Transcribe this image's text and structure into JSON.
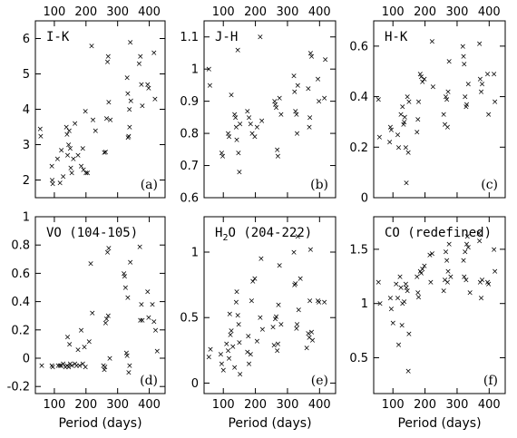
{
  "chart_data": [
    {
      "type": "scatter",
      "panel": "I-K",
      "letter": "(a)",
      "xlabel": "",
      "xticks": [
        100,
        200,
        300,
        400
      ],
      "xlim": [
        40,
        450
      ],
      "ylim": [
        1.5,
        6.5
      ],
      "yticks": [
        2,
        3,
        4,
        5,
        6
      ],
      "ytick_labels": [
        "2",
        "3",
        "4",
        "5",
        "6"
      ],
      "top_tick_labels": [
        "100",
        "200",
        "300",
        "400"
      ],
      "bottom_tick_labels": [],
      "points": [
        [
          55,
          3.45
        ],
        [
          57,
          3.25
        ],
        [
          92,
          2.4
        ],
        [
          93,
          2.0
        ],
        [
          95,
          1.9
        ],
        [
          110,
          2.6
        ],
        [
          118,
          1.92
        ],
        [
          122,
          2.85
        ],
        [
          128,
          2.1
        ],
        [
          138,
          3.5
        ],
        [
          140,
          3.3
        ],
        [
          142,
          2.7
        ],
        [
          145,
          3.0
        ],
        [
          147,
          3.4
        ],
        [
          150,
          2.9
        ],
        [
          152,
          2.35
        ],
        [
          155,
          2.2
        ],
        [
          160,
          2.6
        ],
        [
          165,
          3.6
        ],
        [
          175,
          2.7
        ],
        [
          185,
          2.4
        ],
        [
          190,
          2.9
        ],
        [
          192,
          2.3
        ],
        [
          198,
          3.95
        ],
        [
          200,
          2.2
        ],
        [
          205,
          2.2
        ],
        [
          218,
          5.8
        ],
        [
          222,
          3.7
        ],
        [
          230,
          3.4
        ],
        [
          258,
          2.78
        ],
        [
          262,
          2.8
        ],
        [
          265,
          3.75
        ],
        [
          268,
          5.35
        ],
        [
          270,
          5.5
        ],
        [
          272,
          4.2
        ],
        [
          277,
          3.7
        ],
        [
          330,
          4.9
        ],
        [
          332,
          4.45
        ],
        [
          333,
          3.2
        ],
        [
          335,
          3.25
        ],
        [
          337,
          4.0
        ],
        [
          338,
          3.5
        ],
        [
          340,
          5.9
        ],
        [
          342,
          4.25
        ],
        [
          368,
          5.3
        ],
        [
          372,
          5.5
        ],
        [
          375,
          4.7
        ],
        [
          378,
          4.1
        ],
        [
          395,
          4.7
        ],
        [
          398,
          4.6
        ],
        [
          415,
          5.6
        ],
        [
          418,
          4.3
        ]
      ]
    },
    {
      "type": "scatter",
      "panel": "J-H",
      "letter": "(b)",
      "xlabel": "",
      "xticks": [
        100,
        200,
        300,
        400
      ],
      "xlim": [
        40,
        450
      ],
      "ylim": [
        0.6,
        1.15
      ],
      "yticks": [
        0.6,
        0.7,
        0.8,
        0.9,
        1.0,
        1.1
      ],
      "ytick_labels": [
        "0.6",
        "0.7",
        "0.8",
        "0.9",
        "1",
        "1.1"
      ],
      "top_tick_labels": [
        "100",
        "200",
        "300",
        "400"
      ],
      "bottom_tick_labels": [],
      "points": [
        [
          55,
          1.0
        ],
        [
          58,
          0.95
        ],
        [
          95,
          0.74
        ],
        [
          98,
          0.73
        ],
        [
          115,
          0.8
        ],
        [
          118,
          0.79
        ],
        [
          125,
          0.92
        ],
        [
          135,
          0.86
        ],
        [
          138,
          0.85
        ],
        [
          140,
          0.82
        ],
        [
          142,
          0.78
        ],
        [
          145,
          1.06
        ],
        [
          147,
          0.74
        ],
        [
          150,
          0.68
        ],
        [
          152,
          0.83
        ],
        [
          175,
          0.87
        ],
        [
          180,
          0.85
        ],
        [
          185,
          0.83
        ],
        [
          190,
          0.8
        ],
        [
          198,
          0.79
        ],
        [
          205,
          0.82
        ],
        [
          215,
          1.1
        ],
        [
          220,
          0.84
        ],
        [
          260,
          0.9
        ],
        [
          262,
          0.89
        ],
        [
          265,
          0.88
        ],
        [
          268,
          0.75
        ],
        [
          270,
          0.73
        ],
        [
          275,
          0.91
        ],
        [
          280,
          0.86
        ],
        [
          320,
          0.98
        ],
        [
          322,
          0.93
        ],
        [
          325,
          0.87
        ],
        [
          328,
          0.86
        ],
        [
          330,
          0.8
        ],
        [
          332,
          0.95
        ],
        [
          365,
          0.94
        ],
        [
          368,
          0.82
        ],
        [
          370,
          0.85
        ],
        [
          372,
          1.05
        ],
        [
          375,
          1.04
        ],
        [
          395,
          0.97
        ],
        [
          398,
          0.9
        ],
        [
          415,
          0.91
        ],
        [
          418,
          1.03
        ]
      ]
    },
    {
      "type": "scatter",
      "panel": "H-K",
      "letter": "(c)",
      "xlabel": "",
      "xticks": [
        100,
        200,
        300,
        400
      ],
      "xlim": [
        40,
        450
      ],
      "ylim": [
        0.0,
        0.7
      ],
      "yticks": [
        0.0,
        0.2,
        0.4,
        0.6
      ],
      "ytick_labels": [
        "0",
        "0.2",
        "0.4",
        "0.6"
      ],
      "top_tick_labels": [
        "100",
        "200",
        "300",
        "400"
      ],
      "bottom_tick_labels": [],
      "points": [
        [
          55,
          0.39
        ],
        [
          58,
          0.24
        ],
        [
          90,
          0.22
        ],
        [
          92,
          0.28
        ],
        [
          95,
          0.27
        ],
        [
          115,
          0.25
        ],
        [
          118,
          0.2
        ],
        [
          125,
          0.33
        ],
        [
          130,
          0.36
        ],
        [
          133,
          0.29
        ],
        [
          135,
          0.3
        ],
        [
          137,
          0.32
        ],
        [
          140,
          0.2
        ],
        [
          142,
          0.06
        ],
        [
          145,
          0.4
        ],
        [
          148,
          0.18
        ],
        [
          150,
          0.38
        ],
        [
          175,
          0.26
        ],
        [
          178,
          0.31
        ],
        [
          180,
          0.38
        ],
        [
          185,
          0.49
        ],
        [
          188,
          0.48
        ],
        [
          192,
          0.46
        ],
        [
          198,
          0.47
        ],
        [
          222,
          0.62
        ],
        [
          225,
          0.44
        ],
        [
          258,
          0.33
        ],
        [
          262,
          0.29
        ],
        [
          265,
          0.4
        ],
        [
          268,
          0.39
        ],
        [
          270,
          0.28
        ],
        [
          272,
          0.42
        ],
        [
          275,
          0.54
        ],
        [
          318,
          0.6
        ],
        [
          320,
          0.56
        ],
        [
          322,
          0.53
        ],
        [
          325,
          0.4
        ],
        [
          328,
          0.36
        ],
        [
          330,
          0.37
        ],
        [
          335,
          0.45
        ],
        [
          370,
          0.61
        ],
        [
          372,
          0.47
        ],
        [
          375,
          0.42
        ],
        [
          378,
          0.45
        ],
        [
          395,
          0.49
        ],
        [
          398,
          0.33
        ],
        [
          415,
          0.49
        ],
        [
          418,
          0.38
        ]
      ]
    },
    {
      "type": "scatter",
      "panel": "VO (104-105)",
      "letter": "(d)",
      "xlabel": "Period (days)",
      "xticks": [
        100,
        200,
        300,
        400
      ],
      "xlim": [
        40,
        450
      ],
      "ylim": [
        -0.25,
        1.0
      ],
      "yticks": [
        -0.2,
        0.0,
        0.2,
        0.4,
        0.6,
        0.8,
        1.0
      ],
      "ytick_labels": [
        "-0.2",
        "0",
        "0.2",
        "0.4",
        "0.6",
        "0.8",
        "1"
      ],
      "top_tick_labels": [],
      "bottom_tick_labels": [
        "100",
        "200",
        "300",
        "400"
      ],
      "points": [
        [
          60,
          -0.05
        ],
        [
          92,
          -0.05
        ],
        [
          95,
          -0.06
        ],
        [
          112,
          -0.05
        ],
        [
          118,
          -0.05
        ],
        [
          122,
          -0.05
        ],
        [
          128,
          -0.04
        ],
        [
          135,
          -0.06
        ],
        [
          140,
          -0.05
        ],
        [
          142,
          0.15
        ],
        [
          145,
          -0.06
        ],
        [
          148,
          0.1
        ],
        [
          150,
          -0.04
        ],
        [
          155,
          -0.05
        ],
        [
          165,
          -0.04
        ],
        [
          170,
          -0.05
        ],
        [
          175,
          0.06
        ],
        [
          180,
          -0.05
        ],
        [
          185,
          0.2
        ],
        [
          190,
          -0.04
        ],
        [
          195,
          0.08
        ],
        [
          198,
          -0.06
        ],
        [
          210,
          0.12
        ],
        [
          215,
          0.67
        ],
        [
          220,
          0.32
        ],
        [
          255,
          -0.05
        ],
        [
          258,
          -0.08
        ],
        [
          260,
          -0.06
        ],
        [
          262,
          0.25
        ],
        [
          265,
          0.28
        ],
        [
          268,
          0.75
        ],
        [
          270,
          0.3
        ],
        [
          272,
          0.78
        ],
        [
          275,
          0.0
        ],
        [
          320,
          0.6
        ],
        [
          322,
          0.58
        ],
        [
          325,
          0.5
        ],
        [
          328,
          0.04
        ],
        [
          330,
          0.02
        ],
        [
          332,
          0.43
        ],
        [
          335,
          -0.1
        ],
        [
          338,
          -0.05
        ],
        [
          340,
          0.68
        ],
        [
          370,
          0.79
        ],
        [
          372,
          0.27
        ],
        [
          375,
          0.38
        ],
        [
          378,
          0.27
        ],
        [
          395,
          0.47
        ],
        [
          398,
          0.29
        ],
        [
          410,
          0.38
        ],
        [
          415,
          0.26
        ],
        [
          420,
          0.2
        ],
        [
          425,
          0.05
        ]
      ]
    },
    {
      "type": "scatter",
      "panel_parts": [
        "H",
        "2",
        "O (204-222)"
      ],
      "letter": "(e)",
      "xlabel": "Period (days)",
      "xticks": [
        100,
        200,
        300,
        400
      ],
      "xlim": [
        40,
        450
      ],
      "ylim": [
        -0.08,
        1.27
      ],
      "yticks": [
        0.0,
        0.5,
        1.0
      ],
      "ytick_labels": [
        "0",
        "0.5",
        "1"
      ],
      "top_tick_labels": [],
      "bottom_tick_labels": [
        "100",
        "200",
        "300",
        "400"
      ],
      "points": [
        [
          55,
          0.2
        ],
        [
          60,
          0.26
        ],
        [
          92,
          0.22
        ],
        [
          95,
          0.15
        ],
        [
          100,
          0.1
        ],
        [
          110,
          0.3
        ],
        [
          115,
          0.25
        ],
        [
          118,
          0.19
        ],
        [
          120,
          0.53
        ],
        [
          122,
          0.37
        ],
        [
          125,
          0.4
        ],
        [
          130,
          0.28
        ],
        [
          135,
          0.12
        ],
        [
          140,
          0.62
        ],
        [
          142,
          0.7
        ],
        [
          145,
          0.52
        ],
        [
          148,
          0.45
        ],
        [
          150,
          0.31
        ],
        [
          152,
          0.07
        ],
        [
          175,
          0.24
        ],
        [
          178,
          0.36
        ],
        [
          180,
          0.15
        ],
        [
          185,
          0.22
        ],
        [
          188,
          0.63
        ],
        [
          192,
          0.78
        ],
        [
          198,
          0.8
        ],
        [
          205,
          0.32
        ],
        [
          215,
          0.5
        ],
        [
          218,
          0.95
        ],
        [
          222,
          0.41
        ],
        [
          255,
          0.43
        ],
        [
          258,
          0.29
        ],
        [
          262,
          0.49
        ],
        [
          265,
          0.51
        ],
        [
          268,
          0.25
        ],
        [
          270,
          0.3
        ],
        [
          272,
          0.6
        ],
        [
          275,
          0.9
        ],
        [
          280,
          0.45
        ],
        [
          320,
          1.0
        ],
        [
          322,
          0.75
        ],
        [
          325,
          0.76
        ],
        [
          328,
          0.42
        ],
        [
          330,
          0.45
        ],
        [
          332,
          1.12
        ],
        [
          335,
          0.56
        ],
        [
          340,
          0.8
        ],
        [
          360,
          0.27
        ],
        [
          365,
          0.38
        ],
        [
          368,
          0.35
        ],
        [
          370,
          0.63
        ],
        [
          372,
          1.02
        ],
        [
          375,
          0.39
        ],
        [
          378,
          0.33
        ],
        [
          395,
          0.63
        ],
        [
          398,
          0.62
        ],
        [
          415,
          0.62
        ]
      ]
    },
    {
      "type": "scatter",
      "panel": "CO (redefined)",
      "letter": "(f)",
      "xlabel": "Period (days)",
      "xticks": [
        100,
        200,
        300,
        400
      ],
      "xlim": [
        40,
        450
      ],
      "ylim": [
        0.17,
        1.8
      ],
      "yticks": [
        0.5,
        1.0,
        1.5
      ],
      "ytick_labels": [
        "0.5",
        "1",
        "1.5"
      ],
      "top_tick_labels": [],
      "bottom_tick_labels": [
        "100",
        "200",
        "300",
        "400"
      ],
      "points": [
        [
          55,
          1.2
        ],
        [
          60,
          1.0
        ],
        [
          92,
          1.05
        ],
        [
          95,
          0.95
        ],
        [
          100,
          0.82
        ],
        [
          110,
          1.18
        ],
        [
          115,
          1.05
        ],
        [
          118,
          0.62
        ],
        [
          122,
          1.25
        ],
        [
          125,
          1.15
        ],
        [
          128,
          0.8
        ],
        [
          130,
          1.0
        ],
        [
          135,
          1.02
        ],
        [
          140,
          1.18
        ],
        [
          142,
          1.15
        ],
        [
          145,
          1.12
        ],
        [
          148,
          0.38
        ],
        [
          150,
          0.72
        ],
        [
          175,
          1.25
        ],
        [
          178,
          1.1
        ],
        [
          180,
          1.06
        ],
        [
          185,
          1.3
        ],
        [
          188,
          1.28
        ],
        [
          192,
          1.32
        ],
        [
          198,
          1.35
        ],
        [
          215,
          1.45
        ],
        [
          218,
          1.2
        ],
        [
          222,
          1.46
        ],
        [
          258,
          1.12
        ],
        [
          262,
          1.22
        ],
        [
          265,
          1.48
        ],
        [
          268,
          1.4
        ],
        [
          270,
          1.2
        ],
        [
          272,
          1.3
        ],
        [
          275,
          1.55
        ],
        [
          280,
          1.25
        ],
        [
          320,
          1.4
        ],
        [
          322,
          1.25
        ],
        [
          325,
          1.48
        ],
        [
          328,
          1.22
        ],
        [
          330,
          1.55
        ],
        [
          332,
          1.62
        ],
        [
          335,
          1.52
        ],
        [
          340,
          1.1
        ],
        [
          368,
          1.65
        ],
        [
          370,
          1.58
        ],
        [
          372,
          1.2
        ],
        [
          375,
          1.05
        ],
        [
          378,
          1.22
        ],
        [
          395,
          1.2
        ],
        [
          398,
          1.18
        ],
        [
          415,
          1.5
        ],
        [
          418,
          1.3
        ]
      ]
    }
  ]
}
